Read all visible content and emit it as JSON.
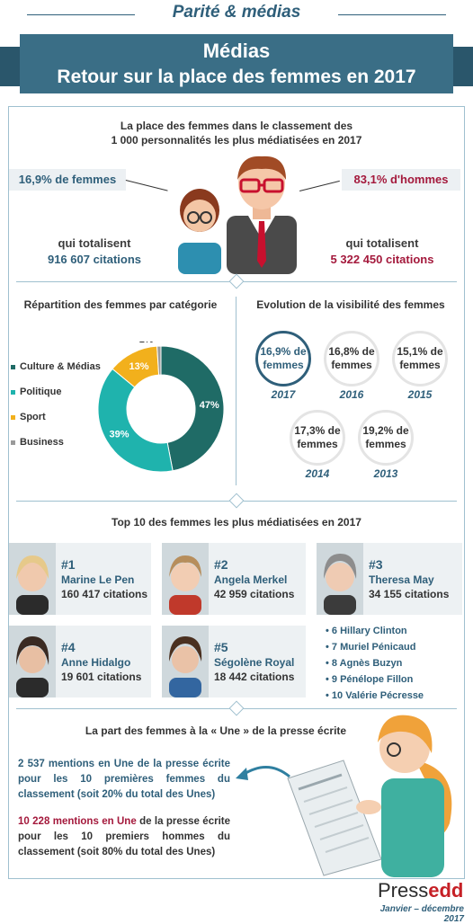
{
  "header": {
    "kicker": "Parité & médias",
    "title_line1": "Médias",
    "title_line2": "Retour sur la place des femmes en 2017"
  },
  "ranking": {
    "title_line1": "La place des femmes dans le classement des",
    "title_line2": "1 000 personnalités les plus médiatisées en 2017",
    "women_pct": "16,9% de femmes",
    "men_pct": "83,1% d'hommes",
    "women_total_label": "qui totalisent",
    "women_total_value": "916 607 citations",
    "men_total_label": "qui totalisent",
    "men_total_value": "5 322 450 citations"
  },
  "categories": {
    "title": "Répartition des femmes par catégorie",
    "legend": [
      {
        "label": "Culture & Médias",
        "color": "#1f6b66"
      },
      {
        "label": "Politique",
        "color": "#1fb3ad"
      },
      {
        "label": "Sport",
        "color": "#f2b01c"
      },
      {
        "label": "Business",
        "color": "#9a9a9a"
      }
    ],
    "labels": [
      "47%",
      "39%",
      "13%",
      "1%"
    ]
  },
  "chart_data": {
    "type": "pie",
    "categories": [
      "Culture & Médias",
      "Politique",
      "Sport",
      "Business"
    ],
    "values": [
      47,
      39,
      13,
      1
    ],
    "title": "Répartition des femmes par catégorie"
  },
  "evolution": {
    "title": "Evolution de la visibilité des femmes",
    "items": [
      {
        "line1": "16,9% de",
        "line2": "femmes",
        "year": "2017"
      },
      {
        "line1": "16,8% de",
        "line2": "femmes",
        "year": "2016"
      },
      {
        "line1": "15,1% de",
        "line2": "femmes",
        "year": "2015"
      },
      {
        "line1": "17,3% de",
        "line2": "femmes",
        "year": "2014"
      },
      {
        "line1": "19,2% de",
        "line2": "femmes",
        "year": "2013"
      }
    ]
  },
  "top10": {
    "title": "Top 10 des femmes les plus médiatisées en 2017",
    "cards": [
      {
        "rank": "#1",
        "name": "Marine Le Pen",
        "citations": "160 417 citations"
      },
      {
        "rank": "#2",
        "name": "Angela Merkel",
        "citations": "42 959 citations"
      },
      {
        "rank": "#3",
        "name": "Theresa May",
        "citations": "34 155 citations"
      },
      {
        "rank": "#4",
        "name": "Anne Hidalgo",
        "citations": "19 601 citations"
      },
      {
        "rank": "#5",
        "name": "Ségolène Royal",
        "citations": "18 442 citations"
      }
    ],
    "others": [
      "• 6  Hillary Clinton",
      "• 7  Muriel Pénicaud",
      "• 8  Agnès Buzyn",
      "• 9  Pénélope Fillon",
      "• 10  Valérie Pécresse"
    ]
  },
  "press": {
    "title": "La part des femmes à la « Une » de la presse écrite",
    "women_highlight": "2 537 mentions en Une",
    "women_text": " de la presse écrite pour les 10 premières femmes du classement (soit 20% du total des Unes)",
    "men_highlight": "10 228 mentions en Une",
    "men_text": " de la presse écrite pour les 10 premiers hommes du classement (soit 80% du total des Unes)"
  },
  "footer": {
    "logo_a": "Press",
    "logo_b": "edd",
    "date": "Janvier – décembre 2017"
  }
}
